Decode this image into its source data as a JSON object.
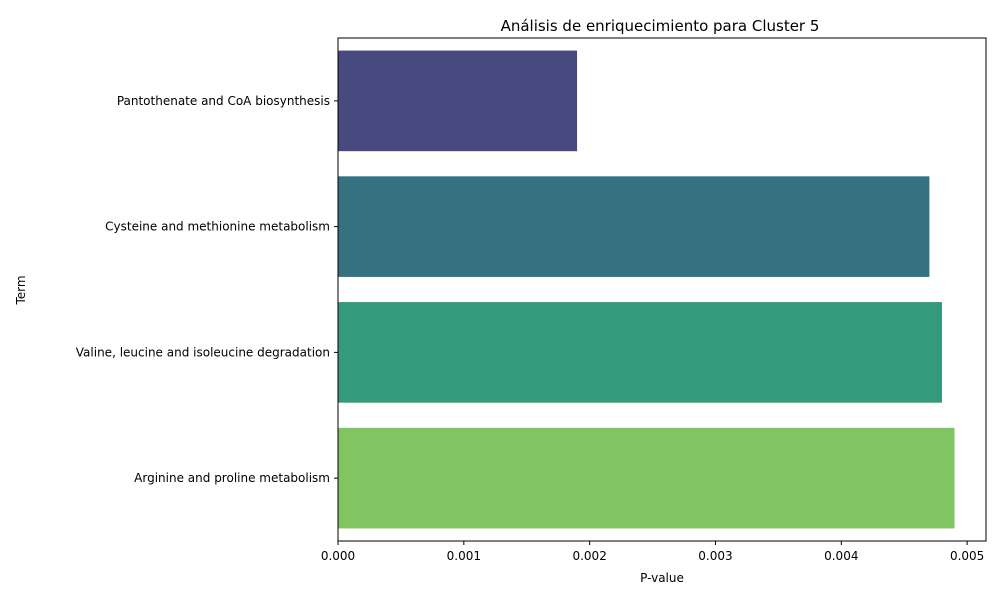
{
  "chart_data": {
    "type": "bar",
    "orientation": "horizontal",
    "title": "Análisis de enriquecimiento para Cluster 5",
    "xlabel": "P-value",
    "ylabel": "Term",
    "categories": [
      "Pantothenate and CoA biosynthesis",
      "Cysteine and methionine metabolism",
      "Valine, leucine and isoleucine degradation",
      "Arginine and proline metabolism"
    ],
    "values": [
      0.0019,
      0.0047,
      0.0048,
      0.0049
    ],
    "colors": [
      "#48497f",
      "#357180",
      "#35997c",
      "#81c462"
    ],
    "xlim": [
      0,
      0.00515
    ],
    "xticks": [
      0.0,
      0.001,
      0.002,
      0.003,
      0.004,
      0.005
    ],
    "xtick_labels": [
      "0.000",
      "0.001",
      "0.002",
      "0.003",
      "0.004",
      "0.005"
    ],
    "grid": false,
    "legend": "none"
  }
}
